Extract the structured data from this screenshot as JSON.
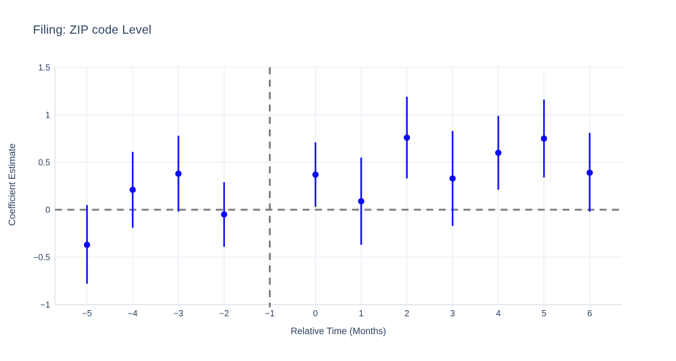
{
  "chart_data": {
    "type": "scatter",
    "subtype": "coefficient-estimates-with-error-bars",
    "title": "Filing: ZIP code Level",
    "xlabel": "Relative Time (Months)",
    "ylabel": "Coefficient Estimate",
    "series": [
      {
        "name": "coefficient-estimate",
        "x": [
          -5,
          -4,
          -3,
          -2,
          0,
          1,
          2,
          3,
          4,
          5,
          6
        ],
        "y": [
          -0.37,
          0.21,
          0.38,
          -0.05,
          0.37,
          0.09,
          0.76,
          0.33,
          0.6,
          0.75,
          0.39
        ],
        "ci_low": [
          -0.78,
          -0.19,
          -0.02,
          -0.39,
          0.03,
          -0.37,
          0.33,
          -0.17,
          0.21,
          0.34,
          -0.02
        ],
        "ci_high": [
          0.05,
          0.61,
          0.78,
          0.29,
          0.71,
          0.55,
          1.19,
          0.83,
          0.99,
          1.16,
          0.81
        ]
      }
    ],
    "omitted_period_x": -1,
    "x_tick_values": [
      -5,
      -4,
      -3,
      -2,
      -1,
      0,
      1,
      2,
      3,
      4,
      5,
      6
    ],
    "x_tick_labels": [
      "−5",
      "−4",
      "−3",
      "−2",
      "−1",
      "0",
      "1",
      "2",
      "3",
      "4",
      "5",
      "6"
    ],
    "y_tick_values": [
      -1,
      -0.5,
      0,
      0.5,
      1,
      1.5
    ],
    "y_tick_labels": [
      "−1",
      "−0.5",
      "0",
      "0.5",
      "1",
      "1.5"
    ],
    "xlim": [
      -5.7,
      6.7
    ],
    "ylim": [
      -1,
      1.5
    ],
    "grid": true,
    "legend": false,
    "reference_lines": [
      {
        "orientation": "vertical",
        "x": -1,
        "style": "dashed"
      },
      {
        "orientation": "horizontal",
        "y": 0,
        "style": "dashed"
      }
    ],
    "colors": {
      "marker": "#0b0bf5",
      "error_bar": "#0b0bf5",
      "reference_line": "#7e7e7e",
      "grid": "#e9eef6",
      "axis_line": "#dde4ee",
      "text": "#2a3f5f",
      "background": "#ffffff"
    }
  }
}
